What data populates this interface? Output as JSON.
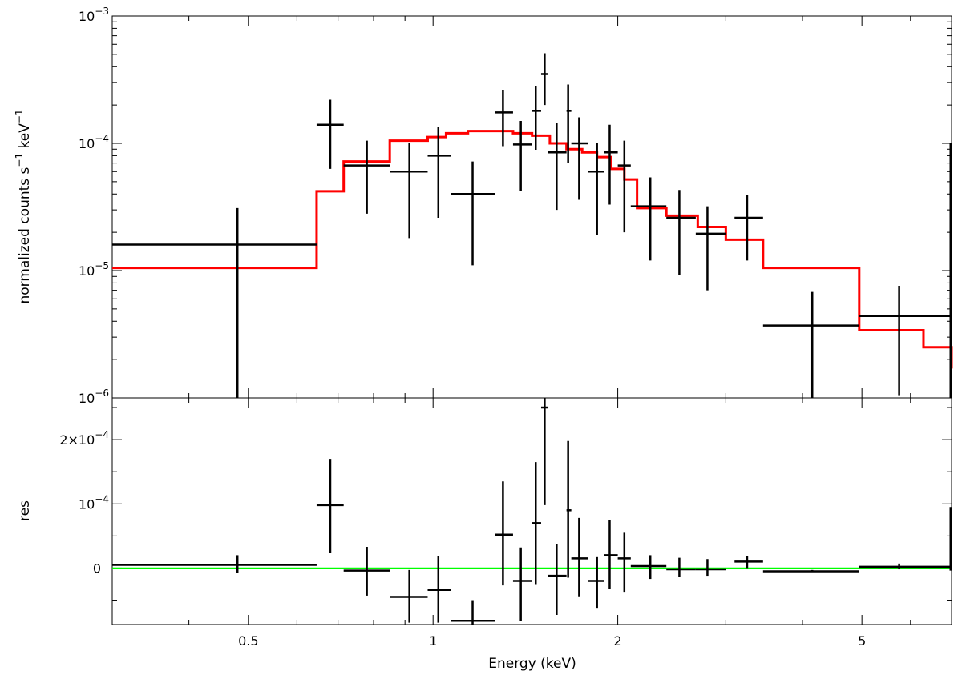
{
  "chart_data": [
    {
      "type": "scatter",
      "panel": "spectrum",
      "xscale": "log",
      "yscale": "log",
      "xlim": [
        0.3,
        7.0
      ],
      "ylim": [
        1e-06,
        0.001
      ],
      "ylabel": "normalized counts s",
      "ylabel_unit_tail": " keV",
      "ylabel_exponent": "−1",
      "y_ticks": [
        {
          "value": 0.001,
          "base": "10",
          "exp": "−3"
        },
        {
          "value": 0.0001,
          "base": "10",
          "exp": "−4"
        },
        {
          "value": 1e-05,
          "base": "10",
          "exp": "−5"
        },
        {
          "value": 1e-06,
          "base": "10",
          "exp": "−6"
        }
      ],
      "data_color": "#000000",
      "model_color": "#ff0000",
      "data": [
        {
          "x": 0.48,
          "xlo": 0.3,
          "xhi": 0.646,
          "y": 1.6e-05,
          "ylo": 1e-06,
          "yhi": 3.1e-05
        },
        {
          "x": 0.68,
          "xlo": 0.646,
          "xhi": 0.715,
          "y": 0.00014,
          "ylo": 6.3e-05,
          "yhi": 0.00022
        },
        {
          "x": 0.78,
          "xlo": 0.715,
          "xhi": 0.85,
          "y": 6.7e-05,
          "ylo": 2.8e-05,
          "yhi": 0.000105
        },
        {
          "x": 0.915,
          "xlo": 0.85,
          "xhi": 0.98,
          "y": 6e-05,
          "ylo": 1.8e-05,
          "yhi": 0.0001
        },
        {
          "x": 1.02,
          "xlo": 0.98,
          "xhi": 1.07,
          "y": 8e-05,
          "ylo": 2.6e-05,
          "yhi": 0.000135
        },
        {
          "x": 1.16,
          "xlo": 1.07,
          "xhi": 1.26,
          "y": 4e-05,
          "ylo": 1.1e-05,
          "yhi": 7.2e-05
        },
        {
          "x": 1.3,
          "xlo": 1.26,
          "xhi": 1.35,
          "y": 0.000175,
          "ylo": 9.5e-05,
          "yhi": 0.00026
        },
        {
          "x": 1.39,
          "xlo": 1.35,
          "xhi": 1.45,
          "y": 9.8e-05,
          "ylo": 4.2e-05,
          "yhi": 0.00015
        },
        {
          "x": 1.47,
          "xlo": 1.45,
          "xhi": 1.5,
          "y": 0.00018,
          "ylo": 8.9e-05,
          "yhi": 0.00028
        },
        {
          "x": 1.52,
          "xlo": 1.5,
          "xhi": 1.54,
          "y": 0.00035,
          "ylo": 0.0002,
          "yhi": 0.00051
        },
        {
          "x": 1.59,
          "xlo": 1.54,
          "xhi": 1.65,
          "y": 8.5e-05,
          "ylo": 3e-05,
          "yhi": 0.000145
        },
        {
          "x": 1.66,
          "xlo": 1.65,
          "xhi": 1.68,
          "y": 0.00018,
          "ylo": 7e-05,
          "yhi": 0.00029
        },
        {
          "x": 1.73,
          "xlo": 1.68,
          "xhi": 1.79,
          "y": 0.0001,
          "ylo": 3.6e-05,
          "yhi": 0.00016
        },
        {
          "x": 1.85,
          "xlo": 1.79,
          "xhi": 1.9,
          "y": 6e-05,
          "ylo": 1.9e-05,
          "yhi": 0.0001
        },
        {
          "x": 1.94,
          "xlo": 1.9,
          "xhi": 2.0,
          "y": 8.5e-05,
          "ylo": 3.3e-05,
          "yhi": 0.00014
        },
        {
          "x": 2.05,
          "xlo": 2.0,
          "xhi": 2.1,
          "y": 6.7e-05,
          "ylo": 2e-05,
          "yhi": 0.000105
        },
        {
          "x": 2.26,
          "xlo": 2.1,
          "xhi": 2.4,
          "y": 3.2e-05,
          "ylo": 1.2e-05,
          "yhi": 5.4e-05
        },
        {
          "x": 2.52,
          "xlo": 2.4,
          "xhi": 2.68,
          "y": 2.6e-05,
          "ylo": 9.3e-06,
          "yhi": 4.3e-05
        },
        {
          "x": 2.8,
          "xlo": 2.68,
          "xhi": 3.0,
          "y": 1.95e-05,
          "ylo": 7e-06,
          "yhi": 3.2e-05
        },
        {
          "x": 3.25,
          "xlo": 3.1,
          "xhi": 3.45,
          "y": 2.6e-05,
          "ylo": 1.2e-05,
          "yhi": 3.9e-05
        },
        {
          "x": 4.15,
          "xlo": 3.45,
          "xhi": 4.95,
          "y": 3.7e-06,
          "ylo": 1e-06,
          "yhi": 6.8e-06
        },
        {
          "x": 5.75,
          "xlo": 4.95,
          "xhi": 7.0,
          "y": 4.4e-06,
          "ylo": 1.05e-06,
          "yhi": 7.6e-06
        }
      ],
      "model_steps": {
        "edges": [
          0.3,
          0.646,
          0.715,
          0.85,
          0.98,
          1.05,
          1.14,
          1.35,
          1.45,
          1.55,
          1.65,
          1.75,
          1.85,
          1.95,
          2.05,
          2.15,
          2.4,
          2.7,
          3.0,
          3.45,
          4.95,
          6.3
        ],
        "values": [
          1.05e-05,
          4.2e-05,
          7.2e-05,
          0.000105,
          0.000112,
          0.00012,
          0.000125,
          0.00012,
          0.000115,
          0.0001,
          9e-05,
          8.5e-05,
          7.8e-05,
          6.3e-05,
          5.2e-05,
          3.1e-05,
          2.7e-05,
          2.2e-05,
          1.75e-05,
          1.05e-05,
          3.4e-06
        ],
        "tail_value": 2.5e-06,
        "drop_value": 1.7e-06
      }
    },
    {
      "type": "scatter",
      "panel": "residuals",
      "xscale": "log",
      "xlim": [
        0.3,
        7.0
      ],
      "ylim": [
        -8.8e-05,
        0.000265
      ],
      "xlabel": "Energy (keV)",
      "ylabel": "res",
      "x_ticks": [
        {
          "value": 0.5,
          "label": "0.5"
        },
        {
          "value": 1,
          "label": "1"
        },
        {
          "value": 2,
          "label": "2"
        },
        {
          "value": 5,
          "label": "5"
        }
      ],
      "y_ticks": [
        {
          "value": 0,
          "label": "0"
        },
        {
          "value": 0.0001,
          "base": "10",
          "exp": "−4"
        },
        {
          "value": 0.0002,
          "base": "2×10",
          "exp": "−4"
        }
      ],
      "zero_line_color": "#00ff00",
      "data_color": "#000000",
      "data": [
        {
          "x": 0.48,
          "xlo": 0.3,
          "xhi": 0.646,
          "y": 5e-06,
          "ylo": -7e-06,
          "yhi": 2e-05
        },
        {
          "x": 0.68,
          "xlo": 0.646,
          "xhi": 0.715,
          "y": 9.8e-05,
          "ylo": 2.3e-05,
          "yhi": 0.00017
        },
        {
          "x": 0.78,
          "xlo": 0.715,
          "xhi": 0.85,
          "y": -4e-06,
          "ylo": -4.3e-05,
          "yhi": 3.3e-05
        },
        {
          "x": 0.915,
          "xlo": 0.85,
          "xhi": 0.98,
          "y": -4.5e-05,
          "ylo": -8.5e-05,
          "yhi": -3e-06
        },
        {
          "x": 1.02,
          "xlo": 0.98,
          "xhi": 1.07,
          "y": -3.4e-05,
          "ylo": -8.5e-05,
          "yhi": 1.9e-05
        },
        {
          "x": 1.16,
          "xlo": 1.07,
          "xhi": 1.26,
          "y": -8.2e-05,
          "ylo": -8.8e-05,
          "yhi": -5e-05
        },
        {
          "x": 1.3,
          "xlo": 1.26,
          "xhi": 1.35,
          "y": 5.2e-05,
          "ylo": -2.7e-05,
          "yhi": 0.000135
        },
        {
          "x": 1.39,
          "xlo": 1.35,
          "xhi": 1.45,
          "y": -2e-05,
          "ylo": -8.2e-05,
          "yhi": 3.2e-05
        },
        {
          "x": 1.47,
          "xlo": 1.45,
          "xhi": 1.5,
          "y": 7e-05,
          "ylo": -2.5e-05,
          "yhi": 0.000165
        },
        {
          "x": 1.52,
          "xlo": 1.5,
          "xhi": 1.54,
          "y": 0.00025,
          "ylo": 9.8e-05,
          "yhi": 0.000265
        },
        {
          "x": 1.59,
          "xlo": 1.54,
          "xhi": 1.65,
          "y": -1.2e-05,
          "ylo": -7.3e-05,
          "yhi": 3.7e-05
        },
        {
          "x": 1.66,
          "xlo": 1.65,
          "xhi": 1.68,
          "y": 9e-05,
          "ylo": -1.5e-05,
          "yhi": 0.000198
        },
        {
          "x": 1.73,
          "xlo": 1.68,
          "xhi": 1.79,
          "y": 1.5e-05,
          "ylo": -4.4e-05,
          "yhi": 7.8e-05
        },
        {
          "x": 1.85,
          "xlo": 1.79,
          "xhi": 1.9,
          "y": -2e-05,
          "ylo": -6.2e-05,
          "yhi": 1.7e-05
        },
        {
          "x": 1.94,
          "xlo": 1.9,
          "xhi": 2.0,
          "y": 2e-05,
          "ylo": -3.2e-05,
          "yhi": 7.5e-05
        },
        {
          "x": 2.05,
          "xlo": 2.0,
          "xhi": 2.1,
          "y": 1.5e-05,
          "ylo": -3.7e-05,
          "yhi": 5.5e-05
        },
        {
          "x": 2.26,
          "xlo": 2.1,
          "xhi": 2.4,
          "y": 3e-06,
          "ylo": -1.7e-05,
          "yhi": 2e-05
        },
        {
          "x": 2.52,
          "xlo": 2.4,
          "xhi": 2.68,
          "y": -2e-06,
          "ylo": -1.4e-05,
          "yhi": 1.6e-05
        },
        {
          "x": 2.8,
          "xlo": 2.68,
          "xhi": 3.0,
          "y": -2e-06,
          "ylo": -1.2e-05,
          "yhi": 1.4e-05
        },
        {
          "x": 3.25,
          "xlo": 3.1,
          "xhi": 3.45,
          "y": 1e-05,
          "ylo": 0,
          "yhi": 1.9e-05
        },
        {
          "x": 4.15,
          "xlo": 3.45,
          "xhi": 4.95,
          "y": -5e-06,
          "ylo": -6e-06,
          "yhi": -3e-06
        },
        {
          "x": 5.75,
          "xlo": 4.95,
          "xhi": 7.0,
          "y": 2e-06,
          "ylo": -2e-06,
          "yhi": 7e-06
        }
      ]
    }
  ]
}
